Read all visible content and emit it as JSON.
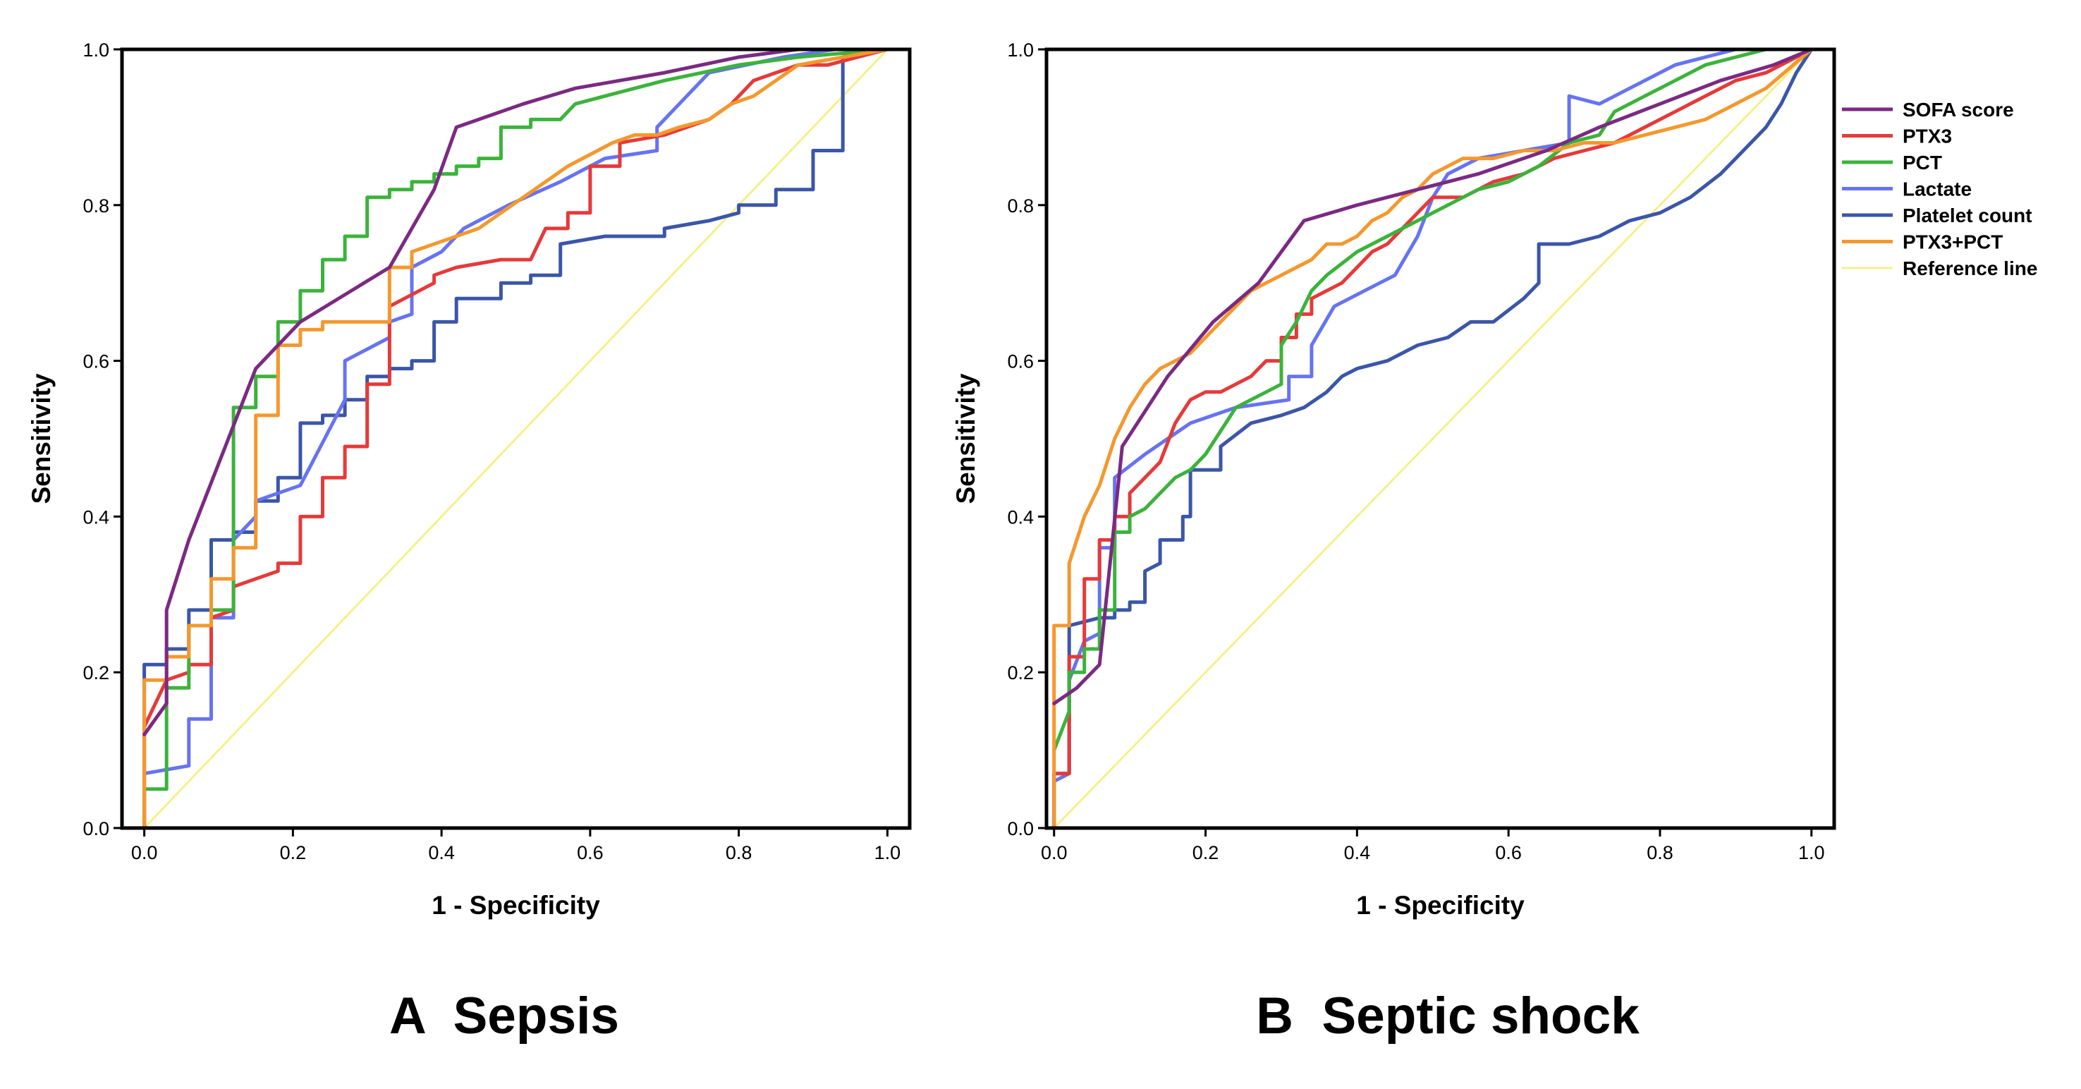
{
  "chart_data": [
    {
      "type": "line",
      "panel": "A",
      "title": "A  Sepsis",
      "xlabel": "1 - Specificity",
      "ylabel": "Sensitivity",
      "xlim": [
        -0.03,
        1.03
      ],
      "ylim": [
        0,
        1
      ],
      "xticks": [
        "0.0",
        "0.2",
        "0.4",
        "0.6",
        "0.8",
        "1.0"
      ],
      "yticks": [
        "0.0",
        "0.2",
        "0.4",
        "0.6",
        "0.8",
        "1.0"
      ],
      "series": [
        {
          "name": "Reference line",
          "color": "#f5f08a",
          "x": [
            0,
            1
          ],
          "y": [
            0,
            1
          ]
        },
        {
          "name": "Platelet count",
          "color": "#3b56a8",
          "x": [
            0,
            0,
            0.03,
            0.03,
            0.06,
            0.06,
            0.09,
            0.09,
            0.12,
            0.12,
            0.15,
            0.15,
            0.18,
            0.18,
            0.21,
            0.21,
            0.24,
            0.24,
            0.27,
            0.27,
            0.3,
            0.3,
            0.33,
            0.33,
            0.36,
            0.36,
            0.39,
            0.39,
            0.42,
            0.42,
            0.45,
            0.45,
            0.48,
            0.48,
            0.52,
            0.52,
            0.56,
            0.56,
            0.62,
            0.7,
            0.7,
            0.76,
            0.8,
            0.8,
            0.85,
            0.85,
            0.9,
            0.9,
            0.94,
            0.94,
            0.97,
            1.0
          ],
          "y": [
            0,
            0.21,
            0.21,
            0.23,
            0.23,
            0.28,
            0.28,
            0.37,
            0.37,
            0.38,
            0.38,
            0.42,
            0.42,
            0.45,
            0.45,
            0.52,
            0.52,
            0.53,
            0.53,
            0.55,
            0.55,
            0.58,
            0.58,
            0.59,
            0.59,
            0.6,
            0.6,
            0.65,
            0.65,
            0.68,
            0.68,
            0.68,
            0.68,
            0.7,
            0.7,
            0.71,
            0.71,
            0.75,
            0.76,
            0.76,
            0.77,
            0.78,
            0.79,
            0.8,
            0.8,
            0.82,
            0.82,
            0.87,
            0.87,
            0.99,
            1.0,
            1.0
          ]
        },
        {
          "name": "Lactate",
          "color": "#6673f2",
          "x": [
            0,
            0,
            0.06,
            0.06,
            0.09,
            0.09,
            0.12,
            0.12,
            0.15,
            0.15,
            0.21,
            0.27,
            0.27,
            0.33,
            0.33,
            0.36,
            0.36,
            0.4,
            0.43,
            0.49,
            0.56,
            0.62,
            0.69,
            0.69,
            0.72,
            0.76,
            0.86,
            0.93,
            1.0
          ],
          "y": [
            0,
            0.07,
            0.08,
            0.14,
            0.14,
            0.27,
            0.27,
            0.37,
            0.4,
            0.42,
            0.44,
            0.55,
            0.6,
            0.63,
            0.65,
            0.66,
            0.72,
            0.74,
            0.77,
            0.8,
            0.83,
            0.86,
            0.87,
            0.9,
            0.93,
            0.97,
            0.99,
            1.0,
            1.0
          ]
        },
        {
          "name": "PTX3",
          "color": "#e53a3a",
          "x": [
            0,
            0,
            0.03,
            0.06,
            0.06,
            0.09,
            0.09,
            0.12,
            0.12,
            0.15,
            0.18,
            0.18,
            0.21,
            0.21,
            0.24,
            0.24,
            0.27,
            0.27,
            0.3,
            0.3,
            0.33,
            0.33,
            0.39,
            0.39,
            0.42,
            0.48,
            0.52,
            0.54,
            0.57,
            0.57,
            0.6,
            0.6,
            0.64,
            0.64,
            0.7,
            0.73,
            0.76,
            0.79,
            0.82,
            0.85,
            0.88,
            0.92,
            0.96,
            1.0
          ],
          "y": [
            0,
            0.13,
            0.19,
            0.2,
            0.21,
            0.21,
            0.27,
            0.28,
            0.31,
            0.32,
            0.33,
            0.34,
            0.34,
            0.4,
            0.4,
            0.45,
            0.45,
            0.49,
            0.49,
            0.57,
            0.57,
            0.67,
            0.7,
            0.71,
            0.72,
            0.73,
            0.73,
            0.77,
            0.77,
            0.79,
            0.79,
            0.85,
            0.85,
            0.88,
            0.89,
            0.9,
            0.91,
            0.93,
            0.96,
            0.97,
            0.98,
            0.98,
            0.99,
            1.0
          ]
        },
        {
          "name": "PCT",
          "color": "#3bb33b",
          "x": [
            0,
            0,
            0.03,
            0.03,
            0.06,
            0.06,
            0.09,
            0.09,
            0.12,
            0.12,
            0.15,
            0.15,
            0.18,
            0.18,
            0.21,
            0.21,
            0.24,
            0.24,
            0.27,
            0.27,
            0.3,
            0.3,
            0.33,
            0.33,
            0.36,
            0.36,
            0.39,
            0.39,
            0.42,
            0.42,
            0.45,
            0.45,
            0.48,
            0.48,
            0.52,
            0.52,
            0.56,
            0.58,
            0.62,
            0.7,
            0.8,
            0.88,
            1.0
          ],
          "y": [
            0,
            0.05,
            0.05,
            0.18,
            0.18,
            0.26,
            0.26,
            0.28,
            0.28,
            0.54,
            0.54,
            0.58,
            0.58,
            0.65,
            0.65,
            0.69,
            0.69,
            0.73,
            0.73,
            0.76,
            0.76,
            0.81,
            0.81,
            0.82,
            0.82,
            0.83,
            0.83,
            0.84,
            0.84,
            0.85,
            0.85,
            0.86,
            0.86,
            0.9,
            0.9,
            0.91,
            0.91,
            0.93,
            0.94,
            0.96,
            0.98,
            0.99,
            1.0
          ]
        },
        {
          "name": "PTX3+PCT",
          "color": "#f4982e",
          "x": [
            0,
            0,
            0.03,
            0.03,
            0.06,
            0.06,
            0.09,
            0.09,
            0.12,
            0.12,
            0.15,
            0.15,
            0.18,
            0.18,
            0.21,
            0.21,
            0.24,
            0.24,
            0.33,
            0.33,
            0.36,
            0.36,
            0.39,
            0.45,
            0.48,
            0.51,
            0.54,
            0.57,
            0.63,
            0.66,
            0.69,
            0.72,
            0.76,
            0.79,
            0.82,
            0.85,
            0.88,
            1.0
          ],
          "y": [
            0,
            0.19,
            0.19,
            0.22,
            0.22,
            0.26,
            0.26,
            0.32,
            0.32,
            0.36,
            0.36,
            0.53,
            0.53,
            0.62,
            0.62,
            0.64,
            0.64,
            0.65,
            0.65,
            0.72,
            0.72,
            0.74,
            0.75,
            0.77,
            0.79,
            0.81,
            0.83,
            0.85,
            0.88,
            0.89,
            0.89,
            0.9,
            0.91,
            0.93,
            0.94,
            0.96,
            0.98,
            1.0
          ]
        },
        {
          "name": "SOFA score",
          "color": "#7b2a82",
          "x": [
            0,
            0.03,
            0.03,
            0.06,
            0.15,
            0.21,
            0.33,
            0.39,
            0.42,
            0.51,
            0.58,
            0.7,
            0.8,
            0.88,
            1.0
          ],
          "y": [
            0.12,
            0.16,
            0.28,
            0.37,
            0.59,
            0.65,
            0.72,
            0.82,
            0.9,
            0.93,
            0.95,
            0.97,
            0.99,
            1.0,
            1.0
          ]
        }
      ]
    },
    {
      "type": "line",
      "panel": "B",
      "title": "B  Septic shock",
      "xlabel": "1 - Specificity",
      "ylabel": "Sensitivity",
      "xlim": [
        -0.01,
        1.03
      ],
      "ylim": [
        0,
        1
      ],
      "xticks": [
        "0.0",
        "0.2",
        "0.4",
        "0.6",
        "0.8",
        "1.0"
      ],
      "yticks": [
        "0.0",
        "0.2",
        "0.4",
        "0.6",
        "0.8",
        "1.0"
      ],
      "legend": {
        "placement": "right, outside plot area",
        "entries": [
          "SOFA score",
          "PTX3",
          "PCT",
          "Lactate",
          "Platelet count",
          "PTX3+PCT",
          "Reference line"
        ]
      },
      "series": [
        {
          "name": "Reference line",
          "color": "#f5f08a",
          "x": [
            0,
            1
          ],
          "y": [
            0,
            1
          ]
        },
        {
          "name": "Platelet count",
          "color": "#3b56a8",
          "x": [
            0,
            0,
            0.02,
            0.02,
            0.06,
            0.08,
            0.08,
            0.1,
            0.1,
            0.12,
            0.12,
            0.14,
            0.14,
            0.17,
            0.17,
            0.18,
            0.18,
            0.22,
            0.22,
            0.26,
            0.3,
            0.33,
            0.36,
            0.38,
            0.4,
            0.44,
            0.48,
            0.52,
            0.55,
            0.58,
            0.62,
            0.64,
            0.64,
            0.68,
            0.72,
            0.76,
            0.8,
            0.84,
            0.88,
            0.9,
            0.92,
            0.94,
            0.96,
            0.98,
            1.0
          ],
          "y": [
            0,
            0.07,
            0.07,
            0.26,
            0.27,
            0.27,
            0.28,
            0.28,
            0.29,
            0.29,
            0.33,
            0.34,
            0.37,
            0.37,
            0.4,
            0.4,
            0.46,
            0.46,
            0.49,
            0.52,
            0.53,
            0.54,
            0.56,
            0.58,
            0.59,
            0.6,
            0.62,
            0.63,
            0.65,
            0.65,
            0.68,
            0.7,
            0.75,
            0.75,
            0.76,
            0.78,
            0.79,
            0.81,
            0.84,
            0.86,
            0.88,
            0.9,
            0.93,
            0.97,
            1.0
          ]
        },
        {
          "name": "Lactate",
          "color": "#6673f2",
          "x": [
            0,
            0,
            0.02,
            0.02,
            0.04,
            0.06,
            0.06,
            0.08,
            0.08,
            0.12,
            0.18,
            0.24,
            0.31,
            0.31,
            0.34,
            0.34,
            0.37,
            0.41,
            0.45,
            0.48,
            0.5,
            0.52,
            0.56,
            0.62,
            0.68,
            0.68,
            0.72,
            0.76,
            0.82,
            0.86,
            0.9,
            1.0
          ],
          "y": [
            0,
            0.06,
            0.07,
            0.19,
            0.24,
            0.25,
            0.36,
            0.36,
            0.45,
            0.48,
            0.52,
            0.54,
            0.55,
            0.58,
            0.58,
            0.62,
            0.67,
            0.69,
            0.71,
            0.76,
            0.81,
            0.84,
            0.86,
            0.87,
            0.88,
            0.94,
            0.93,
            0.95,
            0.98,
            0.99,
            1.0,
            1.0
          ]
        },
        {
          "name": "PTX3",
          "color": "#e53a3a",
          "x": [
            0,
            0,
            0.02,
            0.02,
            0.04,
            0.04,
            0.06,
            0.06,
            0.08,
            0.08,
            0.1,
            0.1,
            0.12,
            0.14,
            0.16,
            0.18,
            0.2,
            0.22,
            0.24,
            0.26,
            0.28,
            0.3,
            0.3,
            0.32,
            0.32,
            0.34,
            0.34,
            0.36,
            0.38,
            0.4,
            0.42,
            0.44,
            0.46,
            0.48,
            0.5,
            0.54,
            0.58,
            0.62,
            0.66,
            0.7,
            0.74,
            0.78,
            0.82,
            0.86,
            0.9,
            0.94,
            1.0
          ],
          "y": [
            0,
            0.07,
            0.07,
            0.22,
            0.22,
            0.32,
            0.32,
            0.37,
            0.37,
            0.4,
            0.4,
            0.43,
            0.45,
            0.47,
            0.52,
            0.55,
            0.56,
            0.56,
            0.57,
            0.58,
            0.6,
            0.6,
            0.63,
            0.63,
            0.66,
            0.66,
            0.68,
            0.69,
            0.7,
            0.72,
            0.74,
            0.75,
            0.77,
            0.79,
            0.81,
            0.81,
            0.83,
            0.84,
            0.86,
            0.87,
            0.88,
            0.9,
            0.92,
            0.94,
            0.96,
            0.97,
            1.0
          ]
        },
        {
          "name": "PCT",
          "color": "#3bb33b",
          "x": [
            0,
            0.02,
            0.02,
            0.04,
            0.04,
            0.06,
            0.06,
            0.08,
            0.08,
            0.1,
            0.1,
            0.12,
            0.14,
            0.16,
            0.18,
            0.2,
            0.22,
            0.24,
            0.26,
            0.28,
            0.3,
            0.3,
            0.32,
            0.34,
            0.36,
            0.4,
            0.44,
            0.48,
            0.52,
            0.56,
            0.6,
            0.64,
            0.68,
            0.72,
            0.74,
            0.78,
            0.82,
            0.86,
            0.9,
            0.94,
            1.0
          ],
          "y": [
            0.1,
            0.15,
            0.2,
            0.2,
            0.23,
            0.23,
            0.28,
            0.28,
            0.38,
            0.38,
            0.4,
            0.41,
            0.43,
            0.45,
            0.46,
            0.48,
            0.51,
            0.54,
            0.55,
            0.56,
            0.57,
            0.62,
            0.65,
            0.69,
            0.71,
            0.74,
            0.76,
            0.78,
            0.8,
            0.82,
            0.83,
            0.85,
            0.88,
            0.89,
            0.92,
            0.94,
            0.96,
            0.98,
            0.99,
            1.0,
            1.0
          ]
        },
        {
          "name": "PTX3+PCT",
          "color": "#f4982e",
          "x": [
            0,
            0,
            0.02,
            0.02,
            0.04,
            0.06,
            0.08,
            0.1,
            0.12,
            0.14,
            0.16,
            0.18,
            0.2,
            0.22,
            0.24,
            0.26,
            0.28,
            0.3,
            0.32,
            0.34,
            0.36,
            0.38,
            0.4,
            0.42,
            0.44,
            0.46,
            0.48,
            0.5,
            0.54,
            0.58,
            0.62,
            0.66,
            0.7,
            0.74,
            0.78,
            0.82,
            0.86,
            0.9,
            0.94,
            1.0
          ],
          "y": [
            0,
            0.26,
            0.26,
            0.34,
            0.4,
            0.44,
            0.5,
            0.54,
            0.57,
            0.59,
            0.6,
            0.61,
            0.63,
            0.65,
            0.67,
            0.69,
            0.7,
            0.71,
            0.72,
            0.73,
            0.75,
            0.75,
            0.76,
            0.78,
            0.79,
            0.81,
            0.82,
            0.84,
            0.86,
            0.86,
            0.87,
            0.87,
            0.88,
            0.88,
            0.89,
            0.9,
            0.91,
            0.93,
            0.95,
            1.0
          ]
        },
        {
          "name": "SOFA score",
          "color": "#7b2a82",
          "x": [
            0,
            0.03,
            0.06,
            0.09,
            0.15,
            0.21,
            0.27,
            0.33,
            0.4,
            0.48,
            0.56,
            0.65,
            0.72,
            0.8,
            0.88,
            0.95,
            1.0
          ],
          "y": [
            0.16,
            0.18,
            0.21,
            0.49,
            0.58,
            0.65,
            0.7,
            0.78,
            0.8,
            0.82,
            0.84,
            0.87,
            0.9,
            0.93,
            0.96,
            0.98,
            1.0
          ]
        }
      ]
    }
  ]
}
